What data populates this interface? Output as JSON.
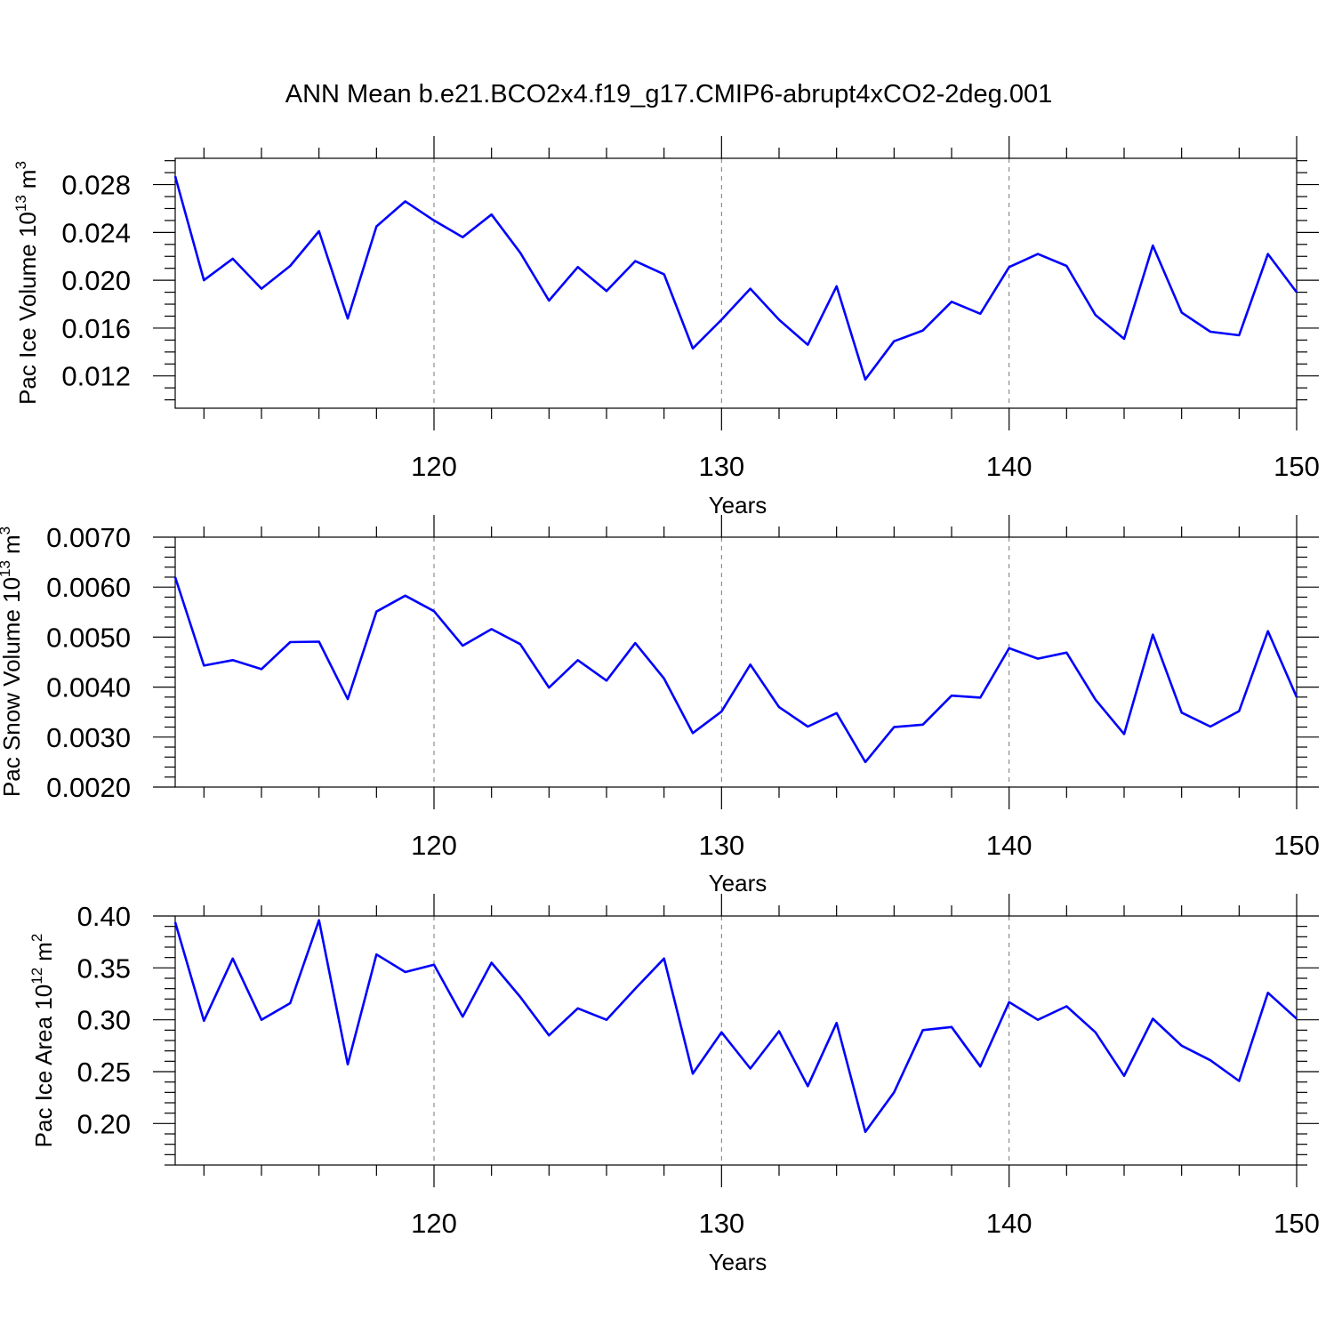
{
  "figure_title": "ANN Mean b.e21.BCO2x4.f19_g17.CMIP6-abrupt4xCO2-2deg.001",
  "line_color": "#0000ff",
  "chart_data": [
    {
      "type": "line",
      "title": "",
      "xlabel": "Years",
      "ylabel": {
        "main": "Pac Ice Volume 10",
        "sup": "13",
        "unit": "m",
        "unit_sup": "3"
      },
      "xlim": [
        111,
        150
      ],
      "ylim": [
        0.0093,
        0.0302
      ],
      "xticks": [
        120,
        130,
        140,
        150
      ],
      "xtick_labels": [
        "120",
        "130",
        "140",
        "150"
      ],
      "yticks": [
        0.012,
        0.016,
        0.02,
        0.024,
        0.028
      ],
      "ytick_labels": [
        "0.012",
        "0.016",
        "0.020",
        "0.024",
        "0.028"
      ],
      "x_minor_step": 2,
      "y_minor_step": 0.001,
      "grid_x": [
        120,
        130,
        140
      ],
      "legend": "none",
      "x": [
        111,
        112,
        113,
        114,
        115,
        116,
        117,
        118,
        119,
        120,
        121,
        122,
        123,
        124,
        125,
        126,
        127,
        128,
        129,
        130,
        131,
        132,
        133,
        134,
        135,
        136,
        137,
        138,
        139,
        140,
        141,
        142,
        143,
        144,
        145,
        146,
        147,
        148,
        149,
        150
      ],
      "series": [
        {
          "values": [
            0.0287,
            0.02,
            0.0218,
            0.0193,
            0.0212,
            0.0241,
            0.0168,
            0.0245,
            0.0266,
            0.025,
            0.0236,
            0.0255,
            0.0223,
            0.0183,
            0.0211,
            0.0191,
            0.0216,
            0.0205,
            0.0143,
            0.0167,
            0.0193,
            0.0167,
            0.0146,
            0.0195,
            0.0117,
            0.0149,
            0.0158,
            0.0182,
            0.0172,
            0.0211,
            0.0222,
            0.0212,
            0.0171,
            0.0151,
            0.0229,
            0.0173,
            0.0157,
            0.0154,
            0.0222,
            0.019
          ]
        }
      ]
    },
    {
      "type": "line",
      "title": "",
      "xlabel": "Years",
      "ylabel": {
        "main": "Pac Snow Volume 10",
        "sup": "13",
        "unit": "m",
        "unit_sup": "3"
      },
      "xlim": [
        111,
        150
      ],
      "ylim": [
        0.002,
        0.007
      ],
      "xticks": [
        120,
        130,
        140,
        150
      ],
      "xtick_labels": [
        "120",
        "130",
        "140",
        "150"
      ],
      "yticks": [
        0.002,
        0.003,
        0.004,
        0.005,
        0.006,
        0.007
      ],
      "ytick_labels": [
        "0.0020",
        "0.0030",
        "0.0040",
        "0.0050",
        "0.0060",
        "0.0070"
      ],
      "x_minor_step": 2,
      "y_minor_step": 0.0002,
      "grid_x": [
        120,
        130,
        140
      ],
      "legend": "none",
      "x": [
        111,
        112,
        113,
        114,
        115,
        116,
        117,
        118,
        119,
        120,
        121,
        122,
        123,
        124,
        125,
        126,
        127,
        128,
        129,
        130,
        131,
        132,
        133,
        134,
        135,
        136,
        137,
        138,
        139,
        140,
        141,
        142,
        143,
        144,
        145,
        146,
        147,
        148,
        149,
        150
      ],
      "series": [
        {
          "values": [
            0.0062,
            0.00443,
            0.00454,
            0.00436,
            0.0049,
            0.00491,
            0.00376,
            0.00551,
            0.00583,
            0.00552,
            0.00483,
            0.00516,
            0.00486,
            0.00399,
            0.00454,
            0.00413,
            0.00488,
            0.00417,
            0.00308,
            0.00351,
            0.00445,
            0.0036,
            0.00321,
            0.00348,
            0.0025,
            0.0032,
            0.00325,
            0.00383,
            0.00379,
            0.00478,
            0.00457,
            0.00469,
            0.00375,
            0.00306,
            0.00505,
            0.00349,
            0.00321,
            0.00352,
            0.00512,
            0.0038
          ]
        }
      ]
    },
    {
      "type": "line",
      "title": "",
      "xlabel": "Years",
      "ylabel": {
        "main": "Pac Ice Area 10",
        "sup": "12",
        "unit": "m",
        "unit_sup": "2"
      },
      "xlim": [
        111,
        150
      ],
      "ylim": [
        0.16,
        0.4
      ],
      "xticks": [
        120,
        130,
        140,
        150
      ],
      "xtick_labels": [
        "120",
        "130",
        "140",
        "150"
      ],
      "yticks": [
        0.2,
        0.25,
        0.3,
        0.35,
        0.4
      ],
      "ytick_labels": [
        "0.20",
        "0.25",
        "0.30",
        "0.35",
        "0.40"
      ],
      "x_minor_step": 2,
      "y_minor_step": 0.01,
      "grid_x": [
        120,
        130,
        140
      ],
      "legend": "none",
      "x": [
        111,
        112,
        113,
        114,
        115,
        116,
        117,
        118,
        119,
        120,
        121,
        122,
        123,
        124,
        125,
        126,
        127,
        128,
        129,
        130,
        131,
        132,
        133,
        134,
        135,
        136,
        137,
        138,
        139,
        140,
        141,
        142,
        143,
        144,
        145,
        146,
        147,
        148,
        149,
        150
      ],
      "series": [
        {
          "values": [
            0.394,
            0.299,
            0.359,
            0.3,
            0.316,
            0.396,
            0.257,
            0.363,
            0.346,
            0.353,
            0.303,
            0.355,
            0.322,
            0.285,
            0.311,
            0.3,
            0.33,
            0.359,
            0.248,
            0.288,
            0.253,
            0.289,
            0.236,
            0.297,
            0.192,
            0.23,
            0.29,
            0.293,
            0.255,
            0.317,
            0.3,
            0.313,
            0.288,
            0.246,
            0.301,
            0.275,
            0.261,
            0.241,
            0.326,
            0.301
          ]
        }
      ]
    }
  ]
}
